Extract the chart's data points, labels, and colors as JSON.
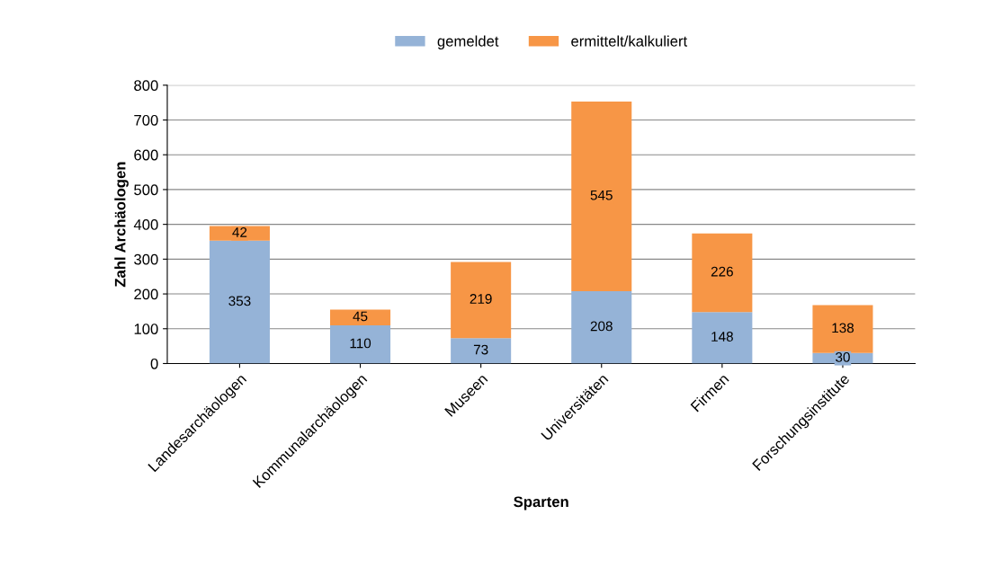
{
  "chart_data": {
    "type": "bar",
    "stacked": true,
    "xlabel": "Sparten",
    "ylabel": "Zahl Archäologen",
    "categories": [
      "Landesarchäologen",
      "Kommunalarchäologen",
      "Museen",
      "Universitäten",
      "Firmen",
      "Forschungsinstitute"
    ],
    "series": [
      {
        "name": "gemeldet",
        "color": "#95b3d7",
        "values": [
          353,
          110,
          73,
          208,
          148,
          30
        ]
      },
      {
        "name": "ermittelt/kalkuliert",
        "color": "#f79646",
        "values": [
          42,
          45,
          219,
          545,
          226,
          138
        ]
      }
    ],
    "ylim": [
      0,
      800
    ],
    "yticks": [
      0,
      100,
      200,
      300,
      400,
      500,
      600,
      700,
      800
    ],
    "grid": "y",
    "legend": "top",
    "data_labels": true
  }
}
